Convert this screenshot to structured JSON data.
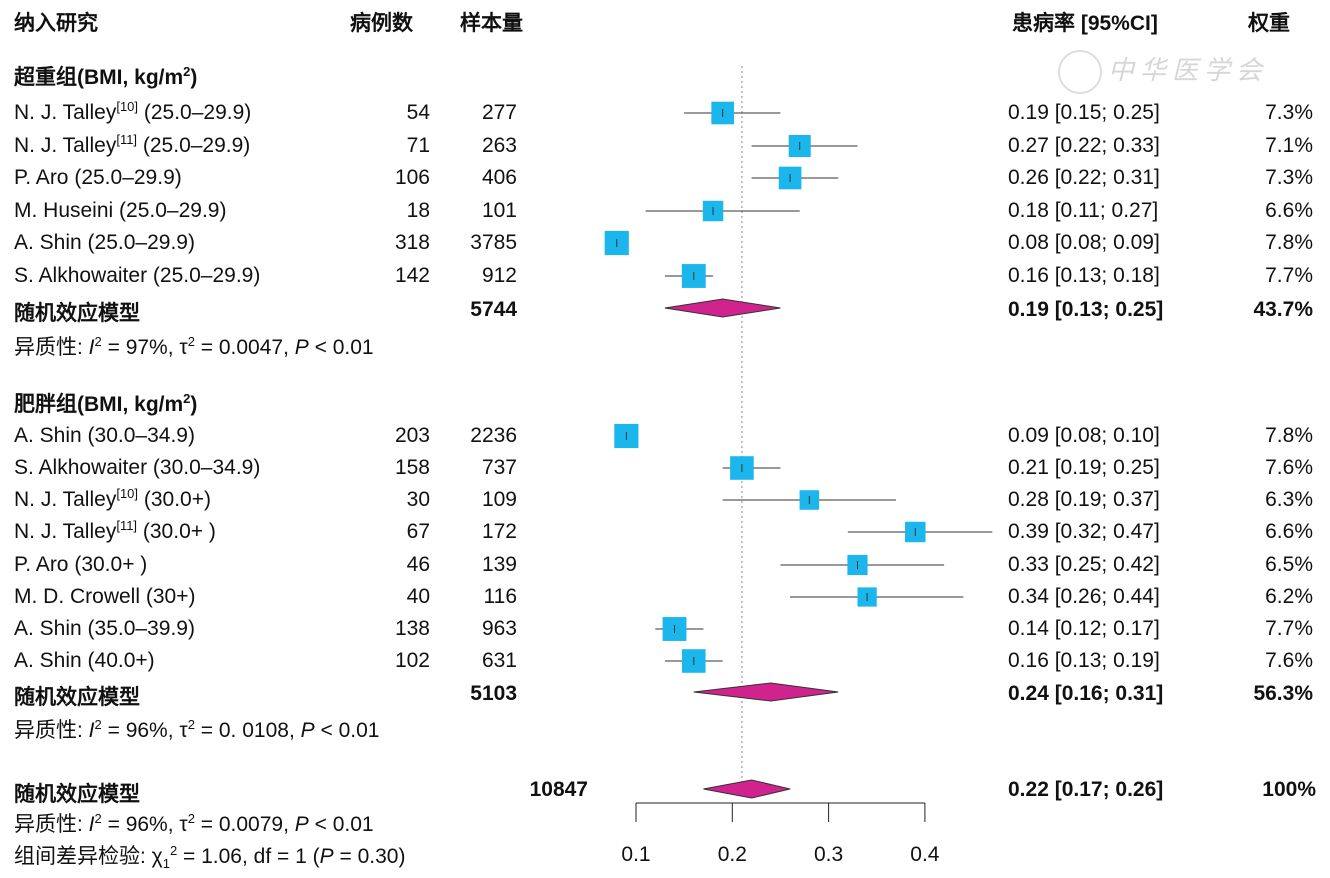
{
  "headers": {
    "study": "纳入研究",
    "cases": "病例数",
    "sample": "样本量",
    "estimate": "患病率 [95%CI]",
    "weight": "权重"
  },
  "watermark": "中华医学会",
  "colors": {
    "square": "#1ab6ec",
    "diamond": "#d0238e",
    "line": "#222"
  },
  "chart_data": {
    "type": "forest",
    "xlim": [
      0.1,
      0.4
    ],
    "xticks": [
      "0.1",
      "0.2",
      "0.3",
      "0.4"
    ],
    "reference_line": 0.21,
    "groups": [
      {
        "title": "超重组",
        "unit": "(BMI, kg/m",
        "unit_sup": "2",
        "unit_end": ")",
        "studies": [
          {
            "name": "N. J. Talley",
            "ref": "[10]",
            "range": " (25.0–29.9)",
            "cases": "54",
            "n": "277",
            "est": 0.19,
            "lo": 0.15,
            "hi": 0.25,
            "ci": "0.19  [0.15; 0.25]",
            "w": "7.3%",
            "wv": 7.3
          },
          {
            "name": "N. J. Talley",
            "ref": "[11]",
            "range": " (25.0–29.9)",
            "cases": "71",
            "n": "263",
            "est": 0.27,
            "lo": 0.22,
            "hi": 0.33,
            "ci": "0.27  [0.22; 0.33]",
            "w": "7.1%",
            "wv": 7.1
          },
          {
            "name": "P. Aro",
            "ref": "",
            "range": " (25.0–29.9)",
            "cases": "106",
            "n": "406",
            "est": 0.26,
            "lo": 0.22,
            "hi": 0.31,
            "ci": "0.26  [0.22; 0.31]",
            "w": "7.3%",
            "wv": 7.3
          },
          {
            "name": "M. Huseini",
            "ref": "",
            "range": " (25.0–29.9)",
            "cases": "18",
            "n": "101",
            "est": 0.18,
            "lo": 0.11,
            "hi": 0.27,
            "ci": "0.18  [0.11; 0.27]",
            "w": "6.6%",
            "wv": 6.6
          },
          {
            "name": "A. Shin",
            "ref": "",
            "range": " (25.0–29.9)",
            "cases": "318",
            "n": "3785",
            "est": 0.08,
            "lo": 0.08,
            "hi": 0.09,
            "ci": "0.08  [0.08; 0.09]",
            "w": "7.8%",
            "wv": 7.8
          },
          {
            "name": "S. Alkhowaiter",
            "ref": "",
            "range": " (25.0–29.9)",
            "cases": "142",
            "n": "912",
            "est": 0.16,
            "lo": 0.13,
            "hi": 0.18,
            "ci": "0.16  [0.13; 0.18]",
            "w": "7.7%",
            "wv": 7.7
          }
        ],
        "pooled": {
          "label": "随机效应模型",
          "n": "5744",
          "est": 0.19,
          "lo": 0.13,
          "hi": 0.25,
          "ci": "0.19  [0.13; 0.25]",
          "w": "43.7%"
        },
        "het": {
          "label": "异质性: ",
          "i2": "97%",
          "tau2": "0.0047",
          "p": "< 0.01"
        }
      },
      {
        "title": "肥胖组",
        "unit": "(BMI, kg/m",
        "unit_sup": "2",
        "unit_end": ")",
        "studies": [
          {
            "name": "A. Shin",
            "ref": "",
            "range": " (30.0–34.9)",
            "cases": "203",
            "n": "2236",
            "est": 0.09,
            "lo": 0.08,
            "hi": 0.1,
            "ci": "0.09  [0.08; 0.10]",
            "w": "7.8%",
            "wv": 7.8
          },
          {
            "name": "S. Alkhowaiter",
            "ref": "",
            "range": " (30.0–34.9)",
            "cases": "158",
            "n": "737",
            "est": 0.21,
            "lo": 0.19,
            "hi": 0.25,
            "ci": "0.21  [0.19; 0.25]",
            "w": "7.6%",
            "wv": 7.6
          },
          {
            "name": "N. J. Talley",
            "ref": "[10]",
            "range": " (30.0+)",
            "cases": "30",
            "n": "109",
            "est": 0.28,
            "lo": 0.19,
            "hi": 0.37,
            "ci": "0.28  [0.19; 0.37]",
            "w": "6.3%",
            "wv": 6.3
          },
          {
            "name": "N. J. Talley",
            "ref": "[11]",
            "range": " (30.0+ )",
            "cases": "67",
            "n": "172",
            "est": 0.39,
            "lo": 0.32,
            "hi": 0.47,
            "ci": "0.39  [0.32; 0.47]",
            "w": "6.6%",
            "wv": 6.6
          },
          {
            "name": "P. Aro",
            "ref": "",
            "range": " (30.0+ )",
            "cases": "46",
            "n": "139",
            "est": 0.33,
            "lo": 0.25,
            "hi": 0.42,
            "ci": "0.33  [0.25; 0.42]",
            "w": "6.5%",
            "wv": 6.5
          },
          {
            "name": "M. D. Crowell",
            "ref": "",
            "range": " (30+)",
            "cases": "40",
            "n": "116",
            "est": 0.34,
            "lo": 0.26,
            "hi": 0.44,
            "ci": "0.34  [0.26; 0.44]",
            "w": "6.2%",
            "wv": 6.2
          },
          {
            "name": "A. Shin",
            "ref": "",
            "range": " (35.0–39.9)",
            "cases": "138",
            "n": "963",
            "est": 0.14,
            "lo": 0.12,
            "hi": 0.17,
            "ci": "0.14  [0.12; 0.17]",
            "w": "7.7%",
            "wv": 7.7
          },
          {
            "name": "A. Shin",
            "ref": "",
            "range": " (40.0+)",
            "cases": "102",
            "n": "631",
            "est": 0.16,
            "lo": 0.13,
            "hi": 0.19,
            "ci": "0.16  [0.13; 0.19]",
            "w": "7.6%",
            "wv": 7.6
          }
        ],
        "pooled": {
          "label": "随机效应模型",
          "n": "5103",
          "est": 0.24,
          "lo": 0.16,
          "hi": 0.31,
          "ci": "0.24  [0.16; 0.31]",
          "w": "56.3%"
        },
        "het": {
          "label": "异质性: ",
          "i2": "96%",
          "tau2": "0. 0108",
          "p": "< 0.01"
        }
      }
    ],
    "overall": {
      "label": "随机效应模型",
      "n": "10847",
      "est": 0.22,
      "lo": 0.17,
      "hi": 0.26,
      "ci": "0.22  [0.17; 0.26]",
      "w": "100%",
      "het": {
        "label": "异质性: ",
        "i2": "96%",
        "tau2": "0.0079",
        "p": "< 0.01"
      },
      "test": {
        "label": "组间差异检验: ",
        "chi": "1.06",
        "df": "df = 1",
        "p": "0.30"
      }
    }
  }
}
